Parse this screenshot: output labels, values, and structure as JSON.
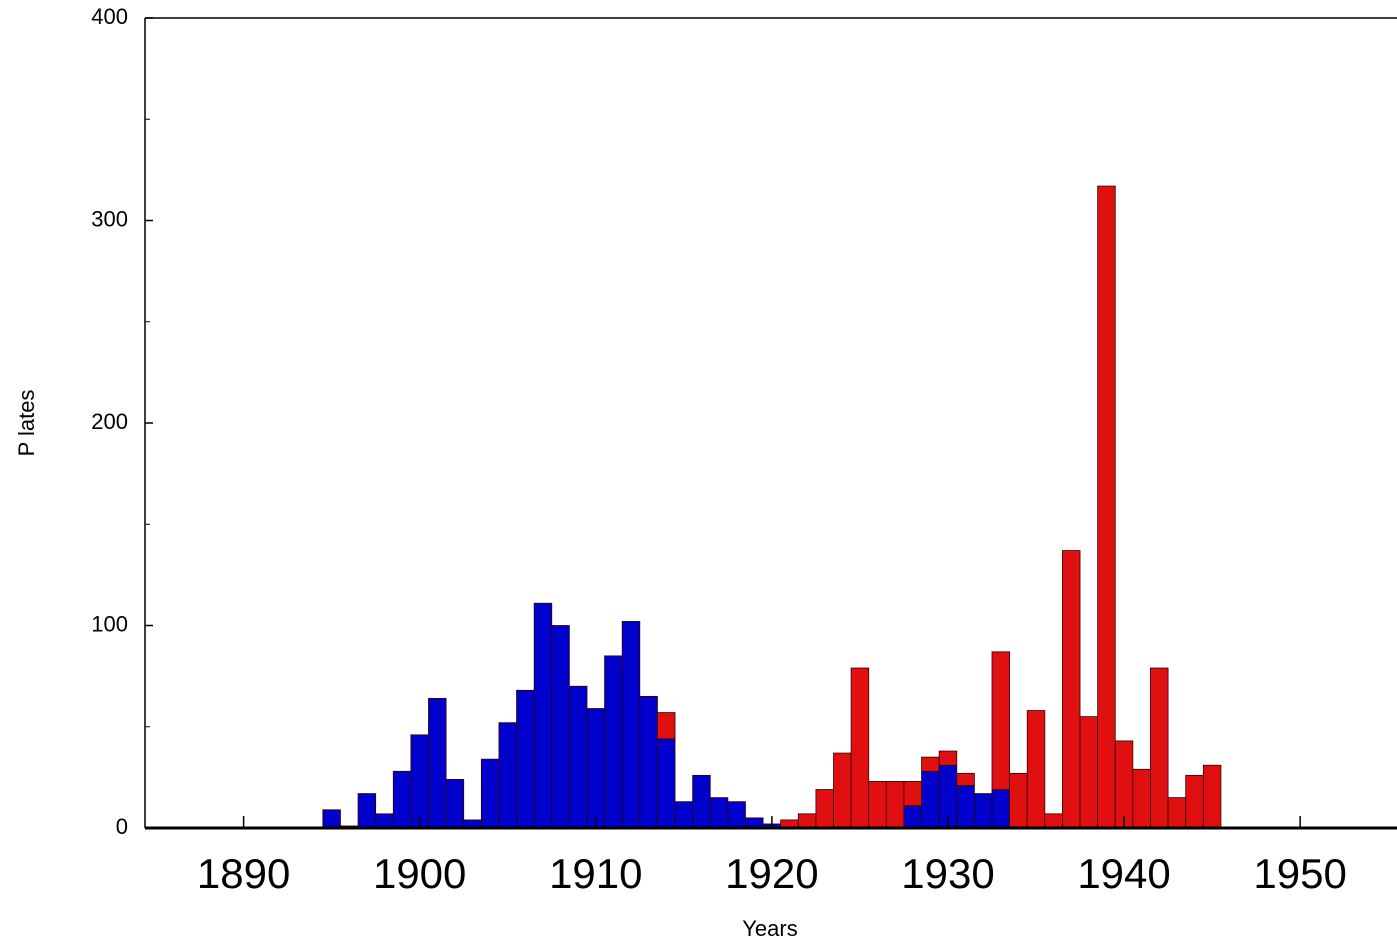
{
  "chart_data": {
    "type": "histogram",
    "stacked": true,
    "xlabel": "Years",
    "ylabel": "P lates",
    "bins": [
      1894.5,
      1895.5,
      1896.5,
      1897.5,
      1898.5,
      1899.5,
      1900.5,
      1901.5,
      1902.5,
      1903.5,
      1904.5,
      1905.5,
      1906.5,
      1907.5,
      1908.5,
      1909.5,
      1910.5,
      1911.5,
      1912.5,
      1913.5,
      1914.5,
      1915.5,
      1916.5,
      1917.5,
      1918.5,
      1919.5,
      1920.5,
      1921.5,
      1922.5,
      1923.5,
      1924.5,
      1925.5,
      1926.5,
      1927.5,
      1928.5,
      1929.5,
      1930.5,
      1931.5,
      1932.5,
      1933.5,
      1934.5,
      1935.5,
      1936.5,
      1937.5,
      1938.5,
      1939.5,
      1940.5,
      1941.5,
      1942.5,
      1943.5,
      1944.5,
      1945.5
    ],
    "series": [
      {
        "color": "#0000cc",
        "values": [
          9,
          1,
          17,
          7,
          28,
          46,
          64,
          24,
          4,
          34,
          52,
          68,
          111,
          100,
          70,
          59,
          85,
          102,
          65,
          44,
          13,
          26,
          15,
          13,
          5,
          2,
          0,
          0,
          0,
          0,
          0,
          0,
          0,
          11,
          28,
          31,
          21,
          17,
          19,
          0,
          0,
          0,
          0,
          0,
          0,
          0,
          0,
          0,
          0,
          0,
          0
        ]
      },
      {
        "color": "#e01010",
        "values": [
          0,
          0,
          0,
          0,
          0,
          0,
          0,
          0,
          0,
          0,
          0,
          0,
          0,
          0,
          0,
          0,
          0,
          0,
          0,
          13,
          0,
          0,
          0,
          0,
          0,
          0,
          4,
          7,
          19,
          37,
          79,
          23,
          23,
          12,
          7,
          7,
          6,
          0,
          68,
          27,
          58,
          7,
          137,
          55,
          317,
          43,
          29,
          79,
          15,
          26,
          31
        ]
      }
    ],
    "xlim": [
      1884.4,
      1955.5
    ],
    "xticks": [
      1890,
      1900,
      1910,
      1920,
      1930,
      1940,
      1950
    ],
    "ylim": [
      0,
      400
    ],
    "yticks": [
      0,
      100,
      200,
      300,
      400
    ],
    "yminor_ticks": [
      50,
      150,
      250,
      350
    ]
  }
}
